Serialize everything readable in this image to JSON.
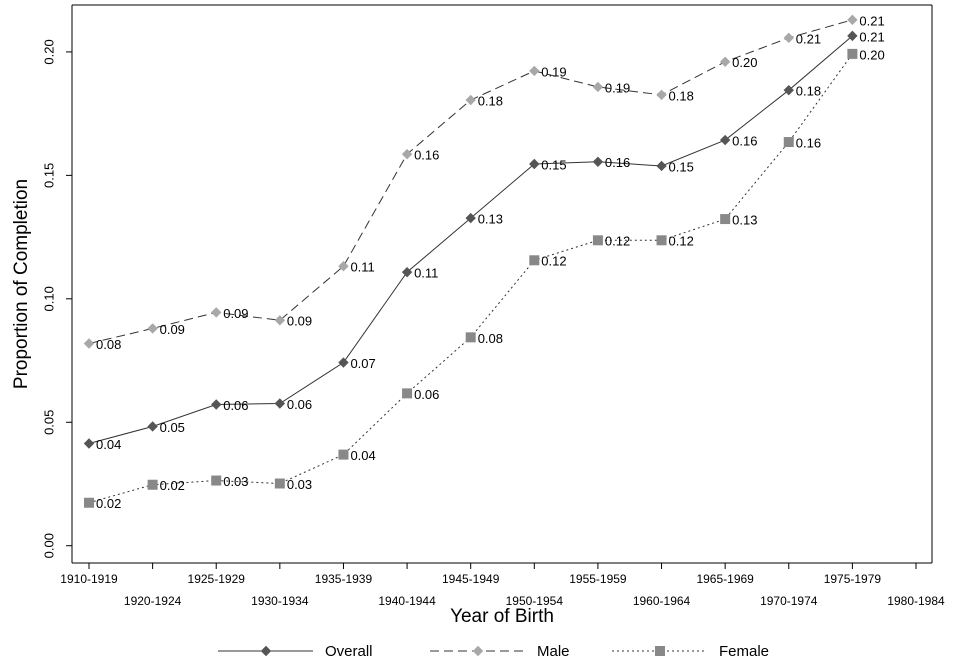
{
  "chart_data": {
    "type": "line",
    "x_label": "Year of Birth",
    "y_label": "Proportion of Completion",
    "categories": [
      "1910-1919",
      "1920-1924",
      "1925-1929",
      "1930-1934",
      "1935-1939",
      "1940-1944",
      "1945-1949",
      "1950-1954",
      "1955-1959",
      "1960-1964",
      "1965-1969",
      "1970-1974",
      "1975-1979",
      "1980-1984"
    ],
    "ylim": [
      -0.007,
      0.219
    ],
    "yticks": [
      {
        "value": 0,
        "label": "0.00"
      },
      {
        "value": 0.05,
        "label": "0.05"
      },
      {
        "value": 0.1,
        "label": "0.10"
      },
      {
        "value": 0.15,
        "label": "0.15"
      },
      {
        "value": 0.2,
        "label": "0.20"
      }
    ],
    "series": [
      {
        "name": "Overall",
        "color": "#555555",
        "dash": "solid",
        "marker": "diamond",
        "values": [
          0.0414,
          0.0483,
          0.0572,
          0.0576,
          0.0742,
          0.1108,
          0.1327,
          0.1546,
          0.1555,
          0.1538,
          0.1643,
          0.1845,
          0.2065,
          null
        ],
        "value_labels": [
          "0.04",
          "0.05",
          "0.06",
          "0.06",
          "0.07",
          "0.11",
          "0.13",
          "0.15",
          "0.16",
          "0.15",
          "0.16",
          "0.18",
          "0.21",
          null
        ]
      },
      {
        "name": "Male",
        "color": "#a8a8a8",
        "dash": "dashed",
        "marker": "diamond",
        "values": [
          0.0819,
          0.088,
          0.0945,
          0.0913,
          0.1132,
          0.1586,
          0.1805,
          0.1923,
          0.1858,
          0.1826,
          0.196,
          0.2057,
          0.213,
          null
        ],
        "value_labels": [
          "0.08",
          "0.09",
          "0.09",
          "0.09",
          "0.11",
          "0.16",
          "0.18",
          "0.19",
          "0.19",
          "0.18",
          "0.20",
          "0.21",
          "0.21",
          null
        ]
      },
      {
        "name": "Female",
        "color": "#888888",
        "dash": "dotted",
        "marker": "square",
        "values": [
          0.0174,
          0.0247,
          0.0264,
          0.0252,
          0.0369,
          0.0617,
          0.0844,
          0.1156,
          0.1237,
          0.1237,
          0.1323,
          0.1635,
          0.1992,
          null
        ],
        "value_labels": [
          "0.02",
          "0.02",
          "0.03",
          "0.03",
          "0.04",
          "0.06",
          "0.08",
          "0.12",
          "0.12",
          "0.12",
          "0.13",
          "0.16",
          "0.20",
          null
        ]
      }
    ]
  }
}
